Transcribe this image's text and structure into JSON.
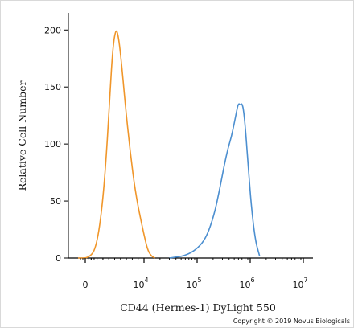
{
  "chart_data": {
    "type": "line",
    "title": "",
    "xlabel": "CD44 (Hermes-1) DyLight 550",
    "ylabel": "Relative Cell Number",
    "x_scale": "biexponential",
    "ylim": [
      0,
      215
    ],
    "x_tick_labels": [
      {
        "base": "0",
        "exp": ""
      },
      {
        "base": "10",
        "exp": "4"
      },
      {
        "base": "10",
        "exp": "5"
      },
      {
        "base": "10",
        "exp": "6"
      },
      {
        "base": "10",
        "exp": "7"
      }
    ],
    "y_tick_labels": [
      "0",
      "50",
      "100",
      "150",
      "200"
    ],
    "y_ticks": [
      0,
      50,
      100,
      150,
      200
    ],
    "grid": false,
    "legend": "none",
    "series": [
      {
        "color": "#f0962a",
        "x": [
          -1500,
          600,
          1800,
          2800,
          3600,
          4200,
          4700,
          5200,
          5600,
          6100,
          6800,
          7600,
          8600,
          9800,
          11500,
          13500,
          16000
        ],
        "y": [
          0,
          0,
          8,
          40,
          90,
          145,
          185,
          201,
          196,
          175,
          135,
          95,
          55,
          25,
          8,
          2,
          0
        ]
      },
      {
        "color": "#4c8fd0",
        "x": [
          30000,
          60000,
          100000,
          150000,
          210000,
          270000,
          320000,
          380000,
          440000,
          500000,
          550000,
          600000,
          650000,
          700000,
          760000,
          830000,
          920000,
          1050000,
          1250000,
          1500000
        ],
        "y": [
          0,
          2,
          8,
          18,
          38,
          62,
          80,
          96,
          106,
          118,
          128,
          136,
          134,
          136,
          128,
          108,
          80,
          45,
          15,
          2
        ]
      }
    ]
  },
  "copyright": "Copyright © 2019 Novus Biologicals"
}
